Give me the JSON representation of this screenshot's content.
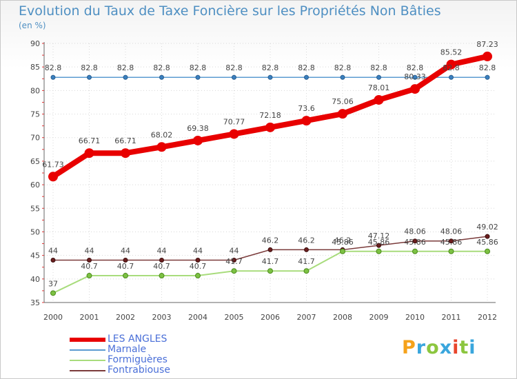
{
  "title": "Evolution du Taux de Taxe Foncière sur les Propriétés Non Bâties",
  "unit_label": "(en %)",
  "chart_data": {
    "type": "line",
    "x": [
      "2000",
      "2001",
      "2002",
      "2003",
      "2004",
      "2005",
      "2006",
      "2007",
      "2008",
      "2009",
      "2010",
      "2011",
      "2012"
    ],
    "ylim": [
      35,
      90
    ],
    "yticks": [
      35,
      40,
      45,
      50,
      55,
      60,
      65,
      70,
      75,
      80,
      85,
      90
    ],
    "grid": true,
    "legend_position": "bottom-left",
    "series": [
      {
        "name": "LES ANGLES",
        "color": "#e80000",
        "values": [
          61.73,
          66.71,
          66.71,
          68.02,
          69.38,
          70.77,
          72.18,
          73.6,
          75.06,
          78.01,
          80.33,
          85.52,
          87.23
        ],
        "labels": [
          "61.73",
          "66.71",
          "66.71",
          "68.02",
          "69.38",
          "70.77",
          "72.18",
          "73.6",
          "75.06",
          "78.01",
          "80.33",
          "85.52",
          "87.23"
        ]
      },
      {
        "name": "Marnale",
        "color": "#5b9bd0",
        "values": [
          82.8,
          82.8,
          82.8,
          82.8,
          82.8,
          82.8,
          82.8,
          82.8,
          82.8,
          82.8,
          82.8,
          82.8,
          82.8
        ],
        "labels": [
          "82.8",
          "82.8",
          "82.8",
          "82.8",
          "82.8",
          "82.8",
          "82.8",
          "82.8",
          "82.8",
          "82.8",
          "82.8",
          "82.8",
          "82.8"
        ]
      },
      {
        "name": "Formiguères",
        "color": "#a8dc7c",
        "values": [
          37,
          40.7,
          40.7,
          40.7,
          40.7,
          41.7,
          41.7,
          41.7,
          45.86,
          45.86,
          45.86,
          45.86,
          45.86
        ],
        "labels": [
          "37",
          "40.7",
          "40.7",
          "40.7",
          "40.7",
          "41.7",
          "41.7",
          "41.7",
          "45.86",
          "45.86",
          "45.86",
          "45.86",
          "45.86"
        ]
      },
      {
        "name": "Fontrabiouse",
        "color": "#7a3a3a",
        "values": [
          44,
          44,
          44,
          44,
          44,
          44,
          46.2,
          46.2,
          46.2,
          47.12,
          48.06,
          48.06,
          49.02
        ],
        "labels": [
          "44",
          "44",
          "44",
          "44",
          "44",
          "44",
          "46.2",
          "46.2",
          "46.2",
          "47.12",
          "48.06",
          "48.06",
          "49.02"
        ]
      }
    ]
  },
  "logo": {
    "letters": [
      "P",
      "r",
      "o",
      "x",
      "i",
      "t",
      "i"
    ],
    "colors": [
      "#f5a21b",
      "#3aa6dd",
      "#8cc63f",
      "#3aa6dd",
      "#e8452c",
      "#8cc63f",
      "#3aa6dd"
    ]
  }
}
